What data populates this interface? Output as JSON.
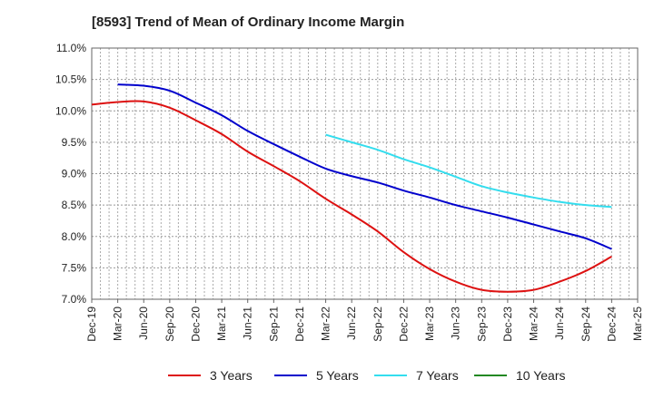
{
  "title": "[8593]  Trend of Mean of Ordinary Income Margin",
  "chart_data": {
    "type": "line",
    "title": "[8593]  Trend of Mean of Ordinary Income Margin",
    "xlabel": "",
    "ylabel": "",
    "x": [
      "Dec-19",
      "Mar-20",
      "Jun-20",
      "Sep-20",
      "Dec-20",
      "Mar-21",
      "Jun-21",
      "Sep-21",
      "Dec-21",
      "Mar-22",
      "Jun-22",
      "Sep-22",
      "Dec-22",
      "Mar-23",
      "Jun-23",
      "Sep-23",
      "Dec-23",
      "Mar-24",
      "Jun-24",
      "Sep-24",
      "Dec-24",
      "Mar-25"
    ],
    "ylim": [
      7.0,
      11.0
    ],
    "yticks": [
      "7.0%",
      "7.5%",
      "8.0%",
      "8.5%",
      "9.0%",
      "9.5%",
      "10.0%",
      "10.5%",
      "11.0%"
    ],
    "grid": true,
    "legend_position": "bottom",
    "series": [
      {
        "name": "3 Years",
        "color": "#dd1111",
        "values": [
          10.1,
          10.14,
          10.15,
          10.05,
          9.85,
          9.63,
          9.35,
          9.12,
          8.88,
          8.6,
          8.35,
          8.08,
          7.75,
          7.48,
          7.28,
          7.15,
          7.12,
          7.15,
          7.28,
          7.45,
          7.68,
          null
        ]
      },
      {
        "name": "5 Years",
        "color": "#0000cc",
        "values": [
          null,
          10.42,
          10.4,
          10.32,
          10.13,
          9.93,
          9.68,
          9.47,
          9.27,
          9.08,
          8.96,
          8.86,
          8.73,
          8.62,
          8.5,
          8.4,
          8.3,
          8.19,
          8.08,
          7.97,
          7.8,
          null
        ]
      },
      {
        "name": "7 Years",
        "color": "#33ddee",
        "values": [
          null,
          null,
          null,
          null,
          null,
          null,
          null,
          null,
          null,
          9.62,
          9.5,
          9.38,
          9.23,
          9.1,
          8.95,
          8.8,
          8.7,
          8.62,
          8.55,
          8.5,
          8.47,
          null
        ]
      },
      {
        "name": "10 Years",
        "color": "#228822",
        "values": [
          null,
          null,
          null,
          null,
          null,
          null,
          null,
          null,
          null,
          null,
          null,
          null,
          null,
          null,
          null,
          null,
          null,
          null,
          null,
          null,
          null,
          null
        ]
      }
    ]
  }
}
